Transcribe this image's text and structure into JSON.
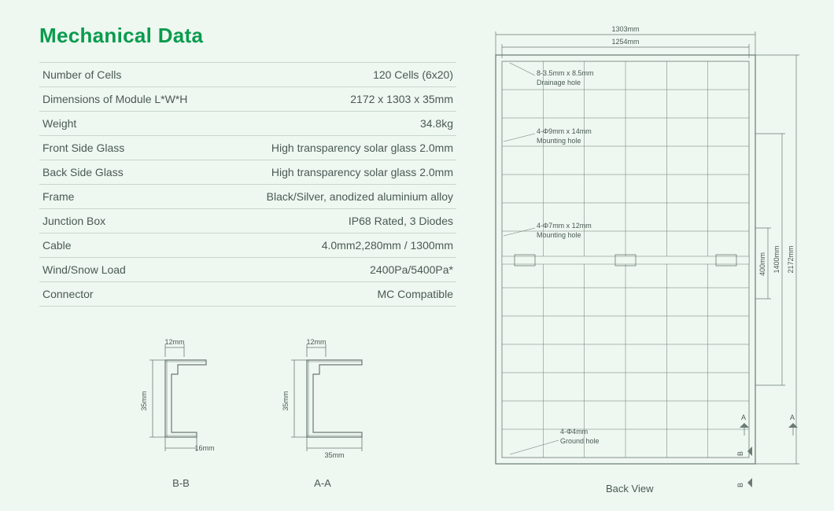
{
  "title": "Mechanical Data",
  "colors": {
    "background": "#eef7f0",
    "title": "#0a9b4e",
    "text": "#4a5a55",
    "rule": "#c8d6cf",
    "diagram_line": "#6a7a75"
  },
  "specs": {
    "rows": [
      {
        "label": "Number of Cells",
        "value": "120 Cells (6x20)"
      },
      {
        "label": "Dimensions of Module L*W*H",
        "value": "2172 x 1303 x 35mm"
      },
      {
        "label": "Weight",
        "value": "34.8kg"
      },
      {
        "label": "Front Side Glass",
        "value": "High transparency solar glass 2.0mm"
      },
      {
        "label": "Back Side Glass",
        "value": "High transparency solar glass 2.0mm"
      },
      {
        "label": "Frame",
        "value": "Black/Silver, anodized aluminium alloy"
      },
      {
        "label": "Junction Box",
        "value": "IP68 Rated, 3 Diodes"
      },
      {
        "label": "Cable",
        "value": "4.0mm2,280mm / 1300mm"
      },
      {
        "label": "Wind/Snow Load",
        "value": "2400Pa/5400Pa*"
      },
      {
        "label": "Connector",
        "value": "MC Compatible"
      }
    ]
  },
  "cross_sections": {
    "bb": {
      "caption": "B-B",
      "top_dim": "12mm",
      "left_dim": "35mm",
      "bottom_dim": "16mm"
    },
    "aa": {
      "caption": "A-A",
      "top_dim": "12mm",
      "left_dim": "35mm",
      "bottom_dim": "35mm"
    }
  },
  "panel_diagram": {
    "caption": "Back View",
    "top_outer": "1303mm",
    "top_inner": "1254mm",
    "right_outer": "2172mm",
    "right_mid": "1400mm",
    "right_inner": "400mm",
    "drainage_label1": "8-3.5mm x 8.5mm",
    "drainage_label2": "Drainage hole",
    "mounting1_label1": "4-Φ9mm x 14mm",
    "mounting1_label2": "Mounting hole",
    "mounting2_label1": "4-Φ7mm x 12mm",
    "mounting2_label2": "Mounting hole",
    "ground_label1": "4-Φ4mm",
    "ground_label2": "Ground hole",
    "section_marker_a": "A",
    "section_marker_b": "B"
  }
}
